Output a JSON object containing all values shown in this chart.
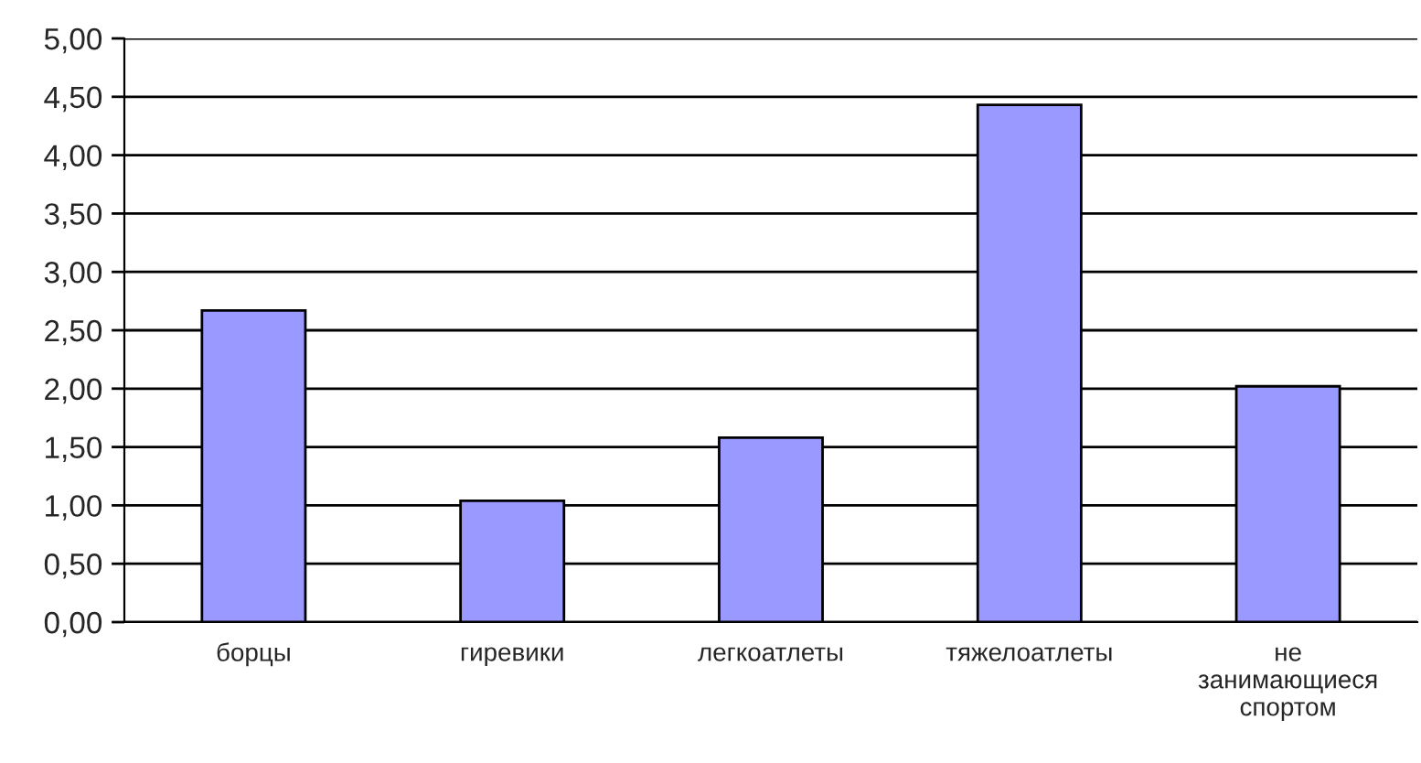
{
  "chart_data": {
    "type": "bar",
    "categories": [
      "борцы",
      "гиревики",
      "легкоатлеты",
      "тяжелоатлеты",
      "не\nзанимающиеся\nспортом"
    ],
    "values": [
      2.67,
      1.04,
      1.58,
      4.43,
      2.02
    ],
    "color": "#9999ff",
    "ylim": [
      0,
      5
    ],
    "yticks": [
      {
        "value": 0,
        "label": "0,00"
      },
      {
        "value": 0.5,
        "label": "0,50"
      },
      {
        "value": 1,
        "label": "1,00"
      },
      {
        "value": 1.5,
        "label": "1,50"
      },
      {
        "value": 2,
        "label": "2,00"
      },
      {
        "value": 2.5,
        "label": "2,50"
      },
      {
        "value": 3,
        "label": "3,00"
      },
      {
        "value": 3.5,
        "label": "3,50"
      },
      {
        "value": 4,
        "label": "4,00"
      },
      {
        "value": 4.5,
        "label": "4,50"
      },
      {
        "value": 5,
        "label": "5,00"
      }
    ],
    "grid": "y",
    "legend": false
  }
}
